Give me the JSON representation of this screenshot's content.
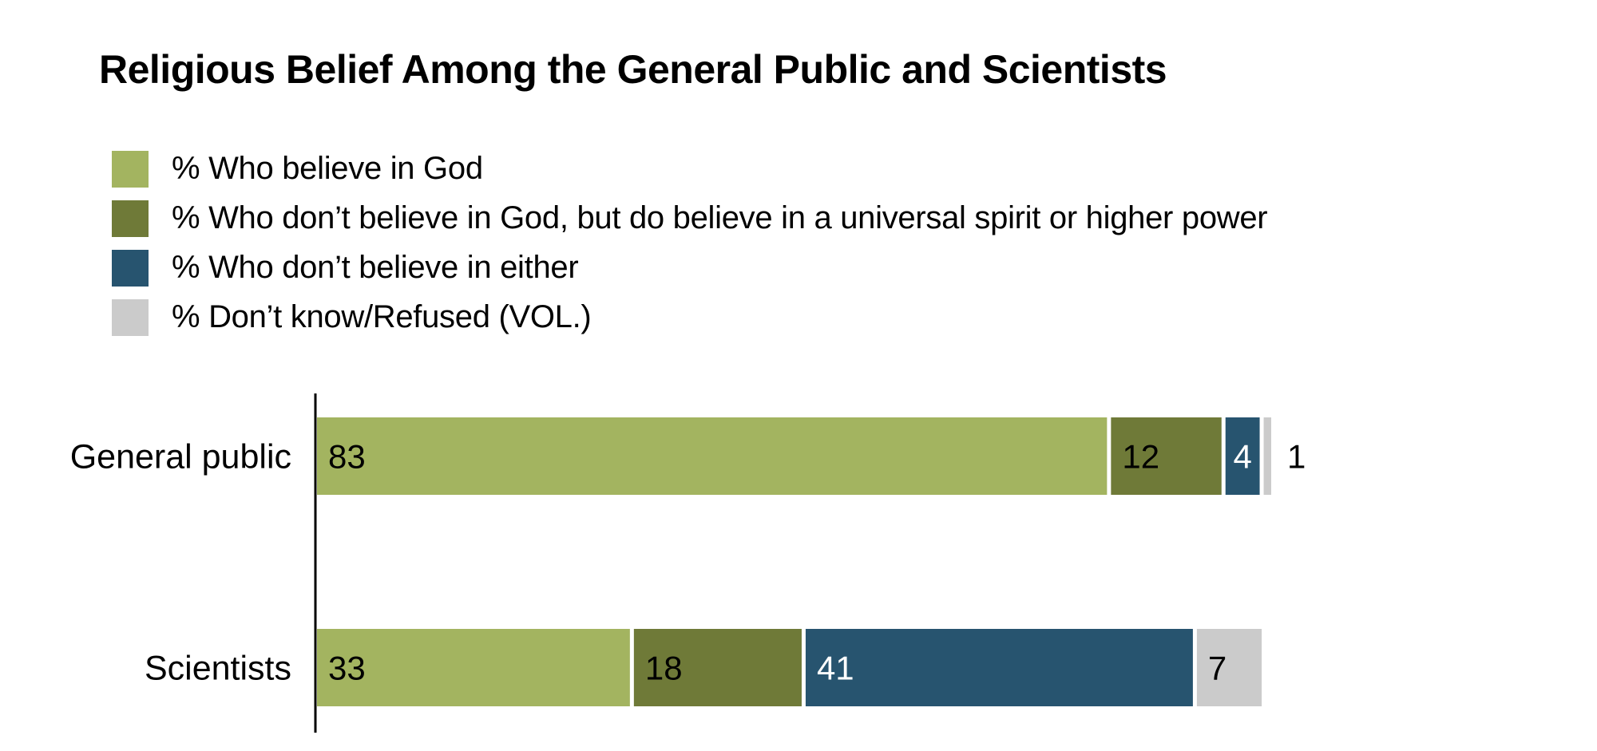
{
  "chart_data": {
    "type": "bar",
    "orientation": "horizontal",
    "stacked": true,
    "title": "Religious Belief Among the General Public and Scientists",
    "xlabel": "",
    "ylabel": "",
    "xlim": [
      0,
      100
    ],
    "grid": false,
    "legend_position": "top-left",
    "categories": [
      "General public",
      "Scientists"
    ],
    "series": [
      {
        "name": "% Who believe in God",
        "color": "#a3b460",
        "label_color": "#000000",
        "values": [
          83,
          33
        ]
      },
      {
        "name": "% Who don’t believe in God, but do believe in a universal spirit or higher power",
        "color": "#6f7a38",
        "label_color": "#000000",
        "values": [
          12,
          18
        ]
      },
      {
        "name": "% Who don’t believe in either",
        "color": "#27546f",
        "label_color": "#ffffff",
        "values": [
          4,
          41
        ]
      },
      {
        "name": "% Don’t know/Refused (VOL.)",
        "color": "#cbcbcb",
        "label_color": "#000000",
        "values": [
          1,
          7
        ]
      }
    ],
    "data_labels": [
      [
        "83",
        "12",
        "4",
        "1"
      ],
      [
        "33",
        "18",
        "41",
        "7"
      ]
    ]
  }
}
